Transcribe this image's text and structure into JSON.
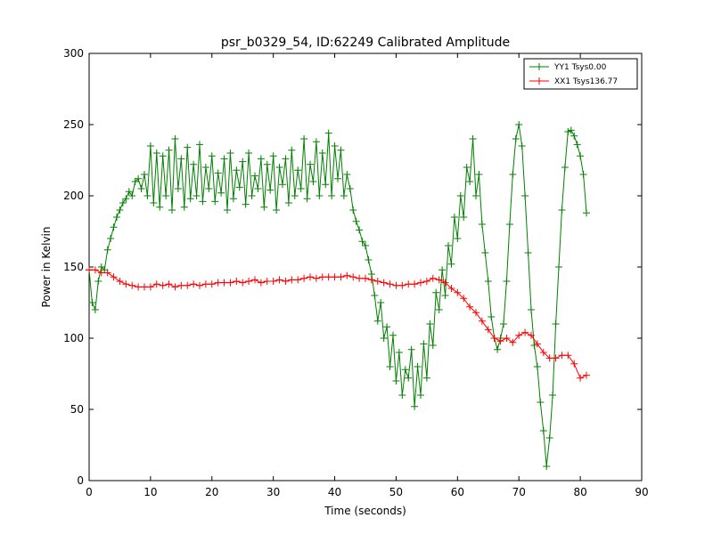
{
  "chart_data": {
    "type": "line",
    "title": "psr_b0329_54, ID:62249 Calibrated Amplitude",
    "xlabel": "Time (seconds)",
    "ylabel": "Power in Kelvin",
    "xlim": [
      0,
      90
    ],
    "ylim": [
      0,
      300
    ],
    "xticks": [
      0,
      10,
      20,
      30,
      40,
      50,
      60,
      70,
      80,
      90
    ],
    "yticks": [
      0,
      50,
      100,
      150,
      200,
      250,
      300
    ],
    "grid": false,
    "legend_position": "top-right",
    "series": [
      {
        "name": "YY1 Tsys0.00",
        "color": "#008000",
        "marker": "+",
        "x": [
          0,
          0.5,
          1,
          1.5,
          2,
          2.5,
          3,
          3.5,
          4,
          4.5,
          5,
          5.5,
          6,
          6.5,
          7,
          7.5,
          8,
          8.5,
          9,
          9.5,
          10,
          10.5,
          11,
          11.5,
          12,
          12.5,
          13,
          13.5,
          14,
          14.5,
          15,
          15.5,
          16,
          16.5,
          17,
          17.5,
          18,
          18.5,
          19,
          19.5,
          20,
          20.5,
          21,
          21.5,
          22,
          22.5,
          23,
          23.5,
          24,
          24.5,
          25,
          25.5,
          26,
          26.5,
          27,
          27.5,
          28,
          28.5,
          29,
          29.5,
          30,
          30.5,
          31,
          31.5,
          32,
          32.5,
          33,
          33.5,
          34,
          34.5,
          35,
          35.5,
          36,
          36.5,
          37,
          37.5,
          38,
          38.5,
          39,
          39.5,
          40,
          40.5,
          41,
          41.5,
          42,
          42.5,
          43,
          43.5,
          44,
          44.5,
          45,
          45.5,
          46,
          46.5,
          47,
          47.5,
          48,
          48.5,
          49,
          49.5,
          50,
          50.5,
          51,
          51.5,
          52,
          52.5,
          53,
          53.5,
          54,
          54.5,
          55,
          55.5,
          56,
          56.5,
          57,
          57.5,
          58,
          58.5,
          59,
          59.5,
          60,
          60.5,
          61,
          61.5,
          62,
          62.5,
          63,
          63.5,
          64,
          64.5,
          65,
          65.5,
          66,
          66.5,
          67,
          67.5,
          68,
          68.5,
          69,
          69.5,
          70,
          70.5,
          71,
          71.5,
          72,
          72.5,
          73,
          73.5,
          74,
          74.5,
          75,
          75.5,
          76,
          76.5,
          77,
          77.5,
          78,
          78.5,
          79,
          79.5,
          80,
          80.5,
          81
        ],
        "y": [
          148,
          125,
          120,
          140,
          150,
          148,
          162,
          170,
          178,
          185,
          190,
          195,
          198,
          203,
          200,
          210,
          212,
          205,
          215,
          200,
          235,
          195,
          230,
          192,
          228,
          200,
          232,
          190,
          240,
          205,
          226,
          192,
          234,
          198,
          222,
          200,
          236,
          196,
          220,
          205,
          228,
          196,
          216,
          202,
          226,
          190,
          230,
          198,
          218,
          206,
          224,
          194,
          230,
          200,
          214,
          205,
          226,
          192,
          222,
          204,
          228,
          190,
          220,
          208,
          226,
          195,
          232,
          200,
          218,
          205,
          240,
          198,
          222,
          210,
          238,
          200,
          230,
          208,
          244,
          200,
          235,
          212,
          232,
          200,
          215,
          205,
          190,
          182,
          176,
          168,
          165,
          155,
          145,
          130,
          112,
          125,
          100,
          108,
          80,
          102,
          70,
          90,
          60,
          78,
          72,
          92,
          52,
          80,
          60,
          96,
          72,
          110,
          95,
          132,
          120,
          148,
          130,
          165,
          152,
          185,
          170,
          200,
          185,
          220,
          210,
          240,
          200,
          215,
          180,
          160,
          140,
          115,
          100,
          92,
          100,
          110,
          140,
          180,
          215,
          240,
          250,
          235,
          200,
          160,
          120,
          95,
          80,
          55,
          35,
          10,
          30,
          60,
          110,
          150,
          190,
          220,
          245,
          246,
          242,
          236,
          228,
          215,
          188
        ]
      },
      {
        "name": "XX1 Tsys136.77",
        "color": "#ff0000",
        "marker": "+",
        "x": [
          0,
          1,
          2,
          3,
          4,
          5,
          6,
          7,
          8,
          9,
          10,
          11,
          12,
          13,
          14,
          15,
          16,
          17,
          18,
          19,
          20,
          21,
          22,
          23,
          24,
          25,
          26,
          27,
          28,
          29,
          30,
          31,
          32,
          33,
          34,
          35,
          36,
          37,
          38,
          39,
          40,
          41,
          42,
          43,
          44,
          45,
          46,
          47,
          48,
          49,
          50,
          51,
          52,
          53,
          54,
          55,
          56,
          57,
          58,
          59,
          60,
          61,
          62,
          63,
          64,
          65,
          66,
          67,
          68,
          69,
          70,
          71,
          72,
          73,
          74,
          75,
          76,
          77,
          78,
          79,
          80,
          81
        ],
        "y": [
          148,
          148,
          146,
          146,
          143,
          140,
          138,
          137,
          136,
          136,
          136,
          138,
          137,
          138,
          136,
          137,
          137,
          138,
          137,
          138,
          138,
          139,
          139,
          139,
          140,
          139,
          140,
          141,
          139,
          140,
          140,
          141,
          140,
          141,
          141,
          142,
          143,
          142,
          143,
          143,
          143,
          143,
          144,
          143,
          142,
          142,
          141,
          140,
          139,
          138,
          137,
          137,
          138,
          138,
          139,
          140,
          142,
          141,
          139,
          135,
          132,
          128,
          122,
          118,
          112,
          106,
          100,
          98,
          100,
          97,
          102,
          104,
          102,
          96,
          90,
          86,
          86,
          88,
          88,
          82,
          72,
          74
        ]
      }
    ]
  }
}
